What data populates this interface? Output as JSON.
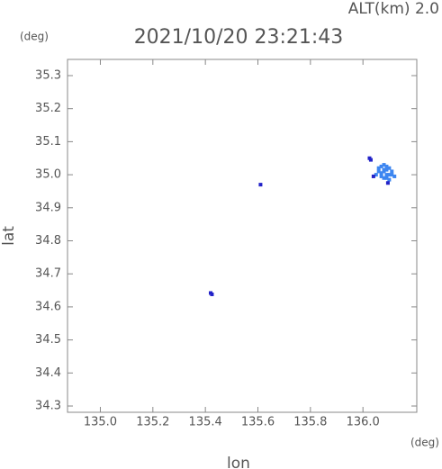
{
  "chart_data": {
    "type": "scatter",
    "altitude_label": "ALT(km) 2.0",
    "title": "2021/10/20 23:21:43",
    "y_unit": "(deg)",
    "x_unit": "(deg)",
    "xlabel": "lon",
    "ylabel": "lat",
    "xlim": [
      134.875,
      136.205
    ],
    "ylim": [
      34.281,
      35.349
    ],
    "xticks": [
      {
        "value": 135.0,
        "label": "135.0"
      },
      135.2,
      135.4,
      135.6,
      135.8,
      {
        "value": 136.0,
        "label": "136.0"
      }
    ],
    "yticks": [
      34.3,
      34.4,
      34.5,
      34.6,
      34.7,
      34.8,
      34.9,
      {
        "value": 35.0,
        "label": "35.0"
      },
      35.1,
      35.2,
      35.3
    ],
    "series": [
      {
        "color": "#3d86f0",
        "x": [
          136.06,
          136.07,
          136.08,
          136.09,
          136.1,
          136.11,
          136.06,
          136.07,
          136.08,
          136.09,
          136.1,
          136.11,
          136.07,
          136.08,
          136.09,
          136.1,
          136.08,
          136.09,
          136.05,
          136.12
        ],
        "y": [
          35.02,
          35.025,
          35.03,
          35.025,
          35.02,
          35.01,
          35.01,
          35.005,
          35.01,
          35.0,
          35.0,
          35.0,
          34.995,
          34.99,
          34.99,
          34.985,
          35.015,
          35.015,
          35.0,
          34.995
        ]
      },
      {
        "color": "#2222c8",
        "x": [
          136.025,
          136.03,
          136.04,
          136.095,
          135.61,
          135.42,
          135.425
        ],
        "y": [
          35.05,
          35.045,
          34.995,
          34.975,
          34.97,
          34.642,
          34.638
        ]
      }
    ]
  }
}
